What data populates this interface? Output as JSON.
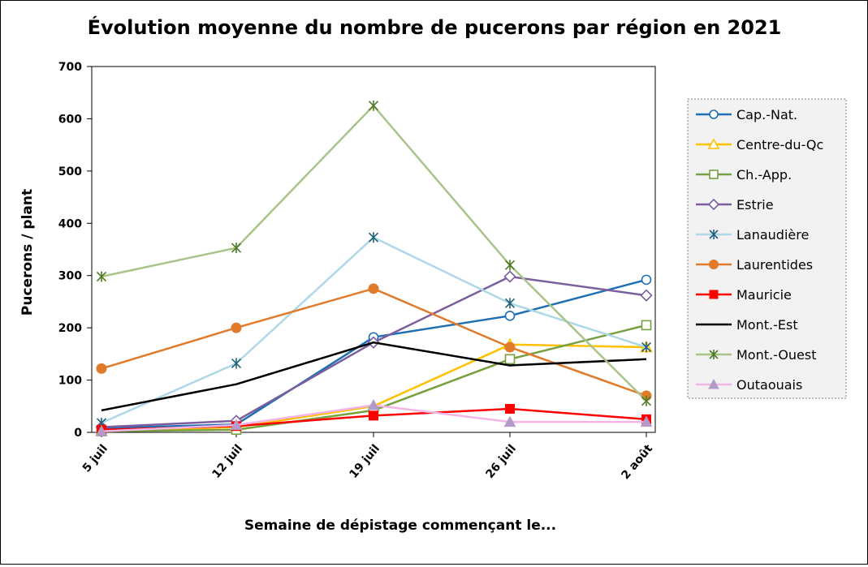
{
  "chart_data": {
    "type": "line",
    "title": "Évolution moyenne du nombre de pucerons par région en 2021",
    "xlabel": "Semaine de dépistage commençant le...",
    "ylabel": "Pucerons / plant",
    "categories": [
      "5 juil",
      "12 juil",
      "19 juil",
      "26 juil",
      "2 août"
    ],
    "ylim": [
      0,
      700
    ],
    "yticks": [
      "0",
      "100",
      "200",
      "300",
      "400",
      "500",
      "600",
      "700"
    ],
    "grid": false,
    "legend_position": "right",
    "series": [
      {
        "name": "Cap.-Nat.",
        "color": "#1F6FB4",
        "marker": "circle-open",
        "values": [
          8,
          15,
          182,
          223,
          292
        ]
      },
      {
        "name": "Centre-du-Qc",
        "color": "#FFC000",
        "marker": "triangle-open",
        "values": [
          3,
          10,
          50,
          168,
          163
        ]
      },
      {
        "name": "Ch.-App.",
        "color": "#77A040",
        "marker": "square-open",
        "values": [
          2,
          5,
          42,
          140,
          205
        ]
      },
      {
        "name": "Estrie",
        "color": "#7C5E9E",
        "marker": "diamond-open",
        "values": [
          10,
          22,
          172,
          298,
          262
        ]
      },
      {
        "name": "Lanaudière",
        "color": "#ADD8E6",
        "marker": "star",
        "values": [
          18,
          132,
          373,
          247,
          163
        ]
      },
      {
        "name": "Laurentides",
        "color": "#E07B2C",
        "marker": "circle-filled",
        "values": [
          122,
          200,
          275,
          163,
          70
        ]
      },
      {
        "name": "Mauricie",
        "color": "#FF0000",
        "marker": "square-filled",
        "values": [
          5,
          12,
          32,
          45,
          25
        ]
      },
      {
        "name": "Mont.-Est",
        "color": "#000000",
        "marker": "none",
        "values": [
          42,
          92,
          172,
          128,
          140
        ]
      },
      {
        "name": "Mont.-Ouest",
        "color": "#A8C488",
        "marker": "star",
        "values": [
          298,
          353,
          625,
          320,
          60
        ]
      },
      {
        "name": "Outaouais",
        "color": "#F2B5E6",
        "marker": "triangle-filled",
        "values": [
          2,
          14,
          52,
          20,
          20
        ]
      }
    ]
  }
}
